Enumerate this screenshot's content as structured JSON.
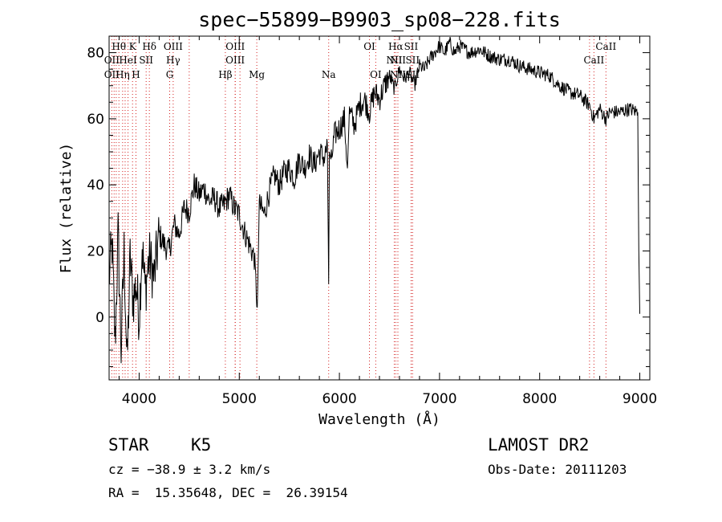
{
  "chart_data": {
    "type": "line",
    "title": "spec−55899−B9903_sp08−228.fits",
    "xlabel": "Wavelength (Å)",
    "ylabel": "Flux (relative)",
    "xlim": [
      3700,
      9100
    ],
    "ylim": [
      -19,
      85
    ],
    "xticks": [
      4000,
      5000,
      6000,
      7000,
      8000,
      9000
    ],
    "yticks": [
      0,
      20,
      40,
      60,
      80
    ],
    "grid": false,
    "series": [
      {
        "name": "spectrum",
        "x": [
          3700,
          3730,
          3760,
          3790,
          3820,
          3850,
          3880,
          3910,
          3940,
          3970,
          4000,
          4030,
          4060,
          4100,
          4150,
          4200,
          4250,
          4300,
          4350,
          4400,
          4450,
          4500,
          4550,
          4600,
          4650,
          4700,
          4750,
          4800,
          4850,
          4900,
          4950,
          5000,
          5050,
          5100,
          5150,
          5180,
          5200,
          5250,
          5300,
          5350,
          5400,
          5450,
          5500,
          5550,
          5600,
          5650,
          5700,
          5750,
          5800,
          5850,
          5880,
          5893,
          5900,
          5920,
          5950,
          6000,
          6050,
          6080,
          6100,
          6150,
          6200,
          6250,
          6300,
          6350,
          6400,
          6450,
          6500,
          6550,
          6600,
          6650,
          6700,
          6750,
          6800,
          6850,
          6900,
          6950,
          7000,
          7050,
          7100,
          7150,
          7200,
          7300,
          7400,
          7500,
          7600,
          7700,
          7800,
          7900,
          8000,
          8100,
          8200,
          8300,
          8400,
          8500,
          8542,
          8600,
          8662,
          8700,
          8800,
          8900,
          8980,
          8990,
          9000
        ],
        "values": [
          12,
          22,
          -8,
          25,
          -10,
          20,
          -15,
          18,
          5,
          10,
          0,
          22,
          8,
          18,
          12,
          25,
          22,
          20,
          28,
          25,
          33,
          32,
          40,
          37,
          39,
          35,
          36,
          33,
          34,
          37,
          33,
          31,
          26,
          22,
          18,
          3,
          34,
          31,
          38,
          43,
          40,
          44,
          45,
          42,
          48,
          45,
          49,
          46,
          50,
          48,
          52,
          10,
          50,
          47,
          55,
          57,
          60,
          45,
          62,
          58,
          64,
          66,
          62,
          68,
          66,
          70,
          73,
          69,
          75,
          72,
          74,
          70,
          76,
          75,
          78,
          80,
          82,
          80,
          83,
          80,
          82,
          80,
          81,
          79,
          78,
          78,
          76,
          75,
          74,
          73,
          70,
          68,
          67,
          64,
          60,
          63,
          60,
          62,
          62,
          63,
          62,
          20,
          1
        ]
      }
    ],
    "lines": [
      {
        "label": "Hθ",
        "x": 3798,
        "row": 1
      },
      {
        "label": "K",
        "x": 3934,
        "row": 1
      },
      {
        "label": "Hδ",
        "x": 4102,
        "row": 1
      },
      {
        "label": "OIII",
        "x": 4340,
        "row": 1
      },
      {
        "label": "OIII",
        "x": 4960,
        "row": 1
      },
      {
        "label": "OI",
        "x": 6300,
        "row": 1
      },
      {
        "label": "Hα",
        "x": 6563,
        "row": 1
      },
      {
        "label": "SII",
        "x": 6716,
        "row": 1
      },
      {
        "label": "CaII",
        "x": 8662,
        "row": 1
      },
      {
        "label": "OII",
        "x": 3727,
        "row": 2
      },
      {
        "label": "HeI",
        "x": 3889,
        "row": 2
      },
      {
        "label": "SII",
        "x": 4070,
        "row": 2
      },
      {
        "label": "Hγ",
        "x": 4340,
        "row": 2
      },
      {
        "label": "OIII",
        "x": 4959,
        "row": 2
      },
      {
        "label": "NII",
        "x": 6548,
        "row": 2
      },
      {
        "label": "NII",
        "x": 6584,
        "row": 2
      },
      {
        "label": "SII",
        "x": 6731,
        "row": 2
      },
      {
        "label": "CaII",
        "x": 8542,
        "row": 2
      },
      {
        "label": "OII",
        "x": 3727,
        "row": 3
      },
      {
        "label": "Hη",
        "x": 3835,
        "row": 3
      },
      {
        "label": "H",
        "x": 3968,
        "row": 3
      },
      {
        "label": "G",
        "x": 4305,
        "row": 3
      },
      {
        "label": "Hβ",
        "x": 4861,
        "row": 3
      },
      {
        "label": "Mg",
        "x": 5175,
        "row": 3
      },
      {
        "label": "Na",
        "x": 5893,
        "row": 3
      },
      {
        "label": "OI",
        "x": 6363,
        "row": 3
      },
      {
        "label": "NII",
        "x": 6584,
        "row": 3
      },
      {
        "label": "SII",
        "x": 6731,
        "row": 3
      }
    ],
    "line_color": "#d42020",
    "extra_marker_lines": [
      3750,
      3771,
      3860,
      3889,
      4340,
      4500,
      4861,
      5007,
      6548,
      6717,
      8498
    ]
  },
  "info": {
    "object_type": "STAR",
    "subclass": "K5",
    "survey": "LAMOST DR2",
    "redshift": "cz = −38.9 ± 3.2 km/s",
    "obs_date": "Obs-Date: 20111203",
    "coords": "RA =  15.35648, DEC =  26.39154"
  }
}
